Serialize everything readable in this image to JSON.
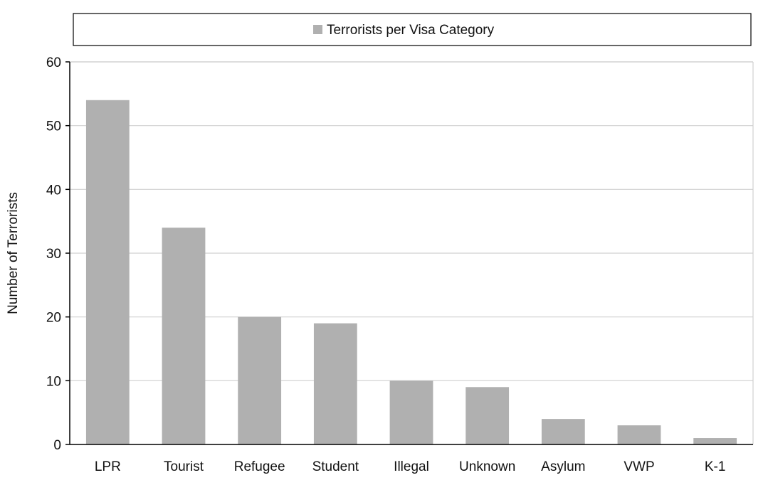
{
  "chart_data": {
    "type": "bar",
    "categories": [
      "LPR",
      "Tourist",
      "Refugee",
      "Student",
      "Illegal",
      "Unknown",
      "Asylum",
      "VWP",
      "K-1"
    ],
    "series": [
      {
        "name": "Terrorists per Visa Category",
        "values": [
          54,
          34,
          20,
          19,
          10,
          9,
          4,
          3,
          1
        ]
      }
    ],
    "title": "",
    "xlabel": "",
    "ylabel": "Number of Terrorists",
    "ylim": [
      0,
      60
    ],
    "yticks": [
      0,
      10,
      20,
      30,
      40,
      50,
      60
    ],
    "grid": "horizontal",
    "legend_position": "top",
    "colors": {
      "bar": "#b0b0b0",
      "grid": "#d0d0d0",
      "axis": "#000000"
    }
  }
}
